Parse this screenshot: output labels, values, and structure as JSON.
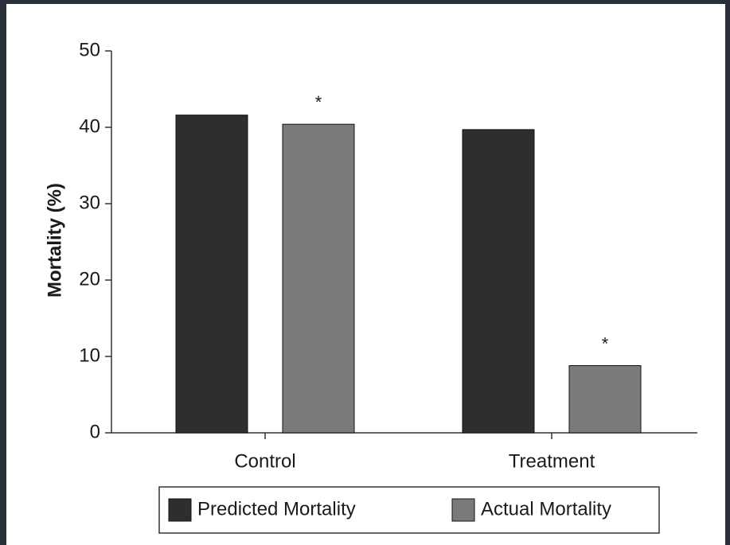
{
  "chart_data": {
    "type": "bar",
    "ylabel": "Mortality (%)",
    "categories": [
      "Control",
      "Treatment"
    ],
    "series": [
      {
        "name": "Predicted Mortality",
        "color": "#2e2e2e",
        "values": [
          41.6,
          39.7
        ]
      },
      {
        "name": "Actual Mortality",
        "color": "#7a7a7a",
        "values": [
          40.4,
          8.8
        ]
      }
    ],
    "annotations": [
      "*",
      "*"
    ],
    "ylim": [
      0,
      50
    ],
    "yticks": [
      0,
      10,
      20,
      30,
      40,
      50
    ]
  }
}
